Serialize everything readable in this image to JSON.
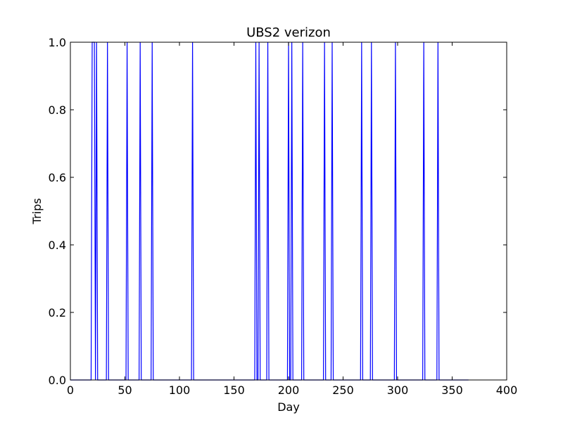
{
  "chart_data": {
    "type": "line",
    "title": "UBS2 verizon",
    "xlabel": "Day",
    "ylabel": "Trips",
    "xlim": [
      0,
      400
    ],
    "ylim": [
      0.0,
      1.0
    ],
    "xticks": [
      "0",
      "50",
      "100",
      "150",
      "200",
      "250",
      "300",
      "350",
      "400"
    ],
    "yticks": [
      "0.0",
      "0.2",
      "0.4",
      "0.6",
      "0.8",
      "1.0"
    ],
    "grid": false,
    "line_color": "#0000ff",
    "series": [
      {
        "x_range": [
          0,
          365
        ],
        "active_days": [
          20,
          21,
          22,
          24,
          34,
          52,
          64,
          75,
          112,
          170,
          173,
          181,
          200,
          203,
          213,
          233,
          240,
          267,
          276,
          298,
          324,
          337
        ],
        "active_value": 1,
        "inactive_value": 0
      }
    ]
  }
}
